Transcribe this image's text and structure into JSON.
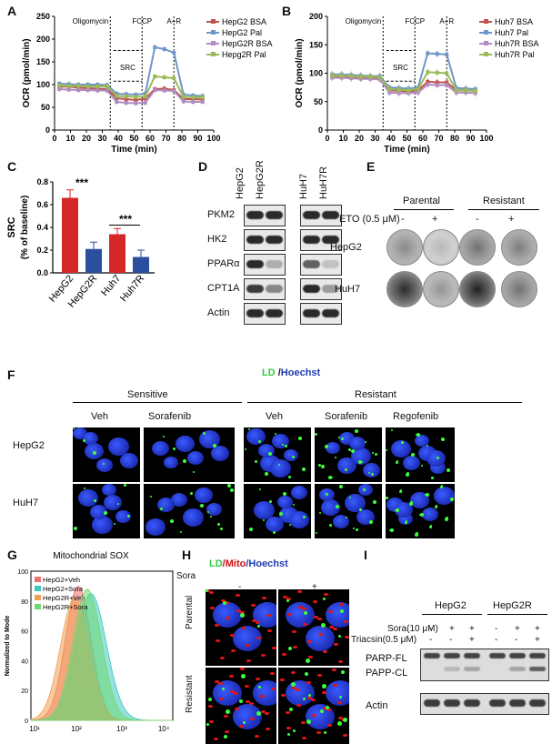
{
  "panels": {
    "A": "A",
    "B": "B",
    "C": "C",
    "D": "D",
    "E": "E",
    "F": "F",
    "G": "G",
    "H": "H",
    "I": "I"
  },
  "panelA": {
    "ylabel": "OCR (pmol/min)",
    "xlabel": "Time (min)",
    "markers": [
      "Oligomycin",
      "FCCP",
      "A+R"
    ],
    "src": "SRC",
    "legend": [
      {
        "name": "HepG2 BSA",
        "color": "#c0504d"
      },
      {
        "name": "HepG2 Pal",
        "color": "#6f96c8"
      },
      {
        "name": "HepG2R BSA",
        "color": "#b08cc0"
      },
      {
        "name": "Hepg2R Pal",
        "color": "#9bbb59"
      }
    ],
    "yticks": [
      "0",
      "50",
      "100",
      "150",
      "200",
      "250"
    ],
    "xticks": [
      "0",
      "10",
      "20",
      "30",
      "40",
      "50",
      "60",
      "70",
      "80",
      "90",
      "100"
    ]
  },
  "panelB": {
    "ylabel": "OCR (pmol/min)",
    "xlabel": "Time (min)",
    "markers": [
      "Oligomycin",
      "FCCP",
      "A+R"
    ],
    "src": "SRC",
    "legend": [
      {
        "name": "Huh7 BSA",
        "color": "#c0504d"
      },
      {
        "name": "Huh7 Pal",
        "color": "#6f96c8"
      },
      {
        "name": "Huh7R BSA",
        "color": "#b08cc0"
      },
      {
        "name": "Huh7R Pal",
        "color": "#9bbb59"
      }
    ],
    "yticks": [
      "0",
      "50",
      "100",
      "150",
      "200"
    ],
    "xticks": [
      "0",
      "10",
      "20",
      "30",
      "40",
      "50",
      "60",
      "70",
      "80",
      "90",
      "100"
    ]
  },
  "chart_data": [
    {
      "type": "line",
      "panel": "A",
      "x": [
        3,
        9,
        15,
        21,
        27,
        33,
        39,
        45,
        51,
        57,
        63,
        69,
        75,
        81,
        87,
        93
      ],
      "series": [
        {
          "name": "HepG2 BSA",
          "values": [
            95,
            96,
            93,
            92,
            91,
            90,
            70,
            68,
            66,
            69,
            90,
            91,
            88,
            68,
            68,
            67
          ]
        },
        {
          "name": "HepG2 Pal",
          "values": [
            102,
            101,
            100,
            100,
            100,
            99,
            80,
            79,
            78,
            80,
            182,
            178,
            170,
            78,
            76,
            75
          ]
        },
        {
          "name": "HepG2R BSA",
          "values": [
            90,
            89,
            88,
            88,
            87,
            87,
            62,
            60,
            59,
            60,
            88,
            87,
            86,
            63,
            62,
            62
          ]
        },
        {
          "name": "Hepg2R Pal",
          "values": [
            98,
            97,
            97,
            96,
            96,
            96,
            75,
            74,
            73,
            74,
            118,
            116,
            114,
            73,
            72,
            72
          ]
        }
      ],
      "ylim": [
        0,
        250
      ],
      "xlim": [
        0,
        100
      ]
    },
    {
      "type": "line",
      "panel": "B",
      "x": [
        3,
        9,
        15,
        21,
        27,
        33,
        39,
        45,
        51,
        57,
        63,
        69,
        75,
        81,
        87,
        93
      ],
      "series": [
        {
          "name": "Huh7 BSA",
          "values": [
            95,
            95,
            94,
            93,
            92,
            91,
            70,
            69,
            68,
            70,
            85,
            84,
            84,
            70,
            70,
            69
          ]
        },
        {
          "name": "Huh7 Pal",
          "values": [
            98,
            98,
            97,
            96,
            95,
            95,
            75,
            74,
            73,
            75,
            135,
            134,
            133,
            74,
            73,
            72
          ]
        },
        {
          "name": "Huh7R BSA",
          "values": [
            92,
            92,
            91,
            90,
            90,
            89,
            66,
            65,
            65,
            66,
            80,
            79,
            79,
            66,
            66,
            65
          ]
        },
        {
          "name": "Huh7R Pal",
          "values": [
            96,
            96,
            95,
            94,
            94,
            93,
            72,
            71,
            70,
            72,
            102,
            101,
            100,
            70,
            70,
            69
          ]
        }
      ],
      "ylim": [
        0,
        200
      ],
      "xlim": [
        0,
        100
      ]
    },
    {
      "type": "bar",
      "panel": "C",
      "categories": [
        "HepG2",
        "HepG2R",
        "Huh7",
        "Huh7R"
      ],
      "values": [
        0.66,
        0.21,
        0.34,
        0.14
      ],
      "errors": [
        0.07,
        0.06,
        0.05,
        0.06
      ],
      "colors": [
        "#d62728",
        "#2b4f9e",
        "#d62728",
        "#2b4f9e"
      ],
      "ylabel": "SRC\n(% of baseline)",
      "ylim": [
        0,
        0.8
      ],
      "yticks": [
        "0.0",
        "0.2",
        "0.4",
        "0.6",
        "0.8"
      ],
      "sig": [
        "***",
        "***"
      ]
    },
    {
      "type": "area",
      "panel": "G",
      "title": "Mitochondrial SOX",
      "ylabel": "Normalized to Mode",
      "series": [
        {
          "name": "HepG2+Veh",
          "color": "#f07070"
        },
        {
          "name": "HepG2+Sora",
          "color": "#40c8c0"
        },
        {
          "name": "HepG2R+Veh",
          "color": "#f0a050"
        },
        {
          "name": "HepG2R+Sora",
          "color": "#70d870"
        }
      ],
      "xticks": [
        "10¹",
        "10²",
        "10³",
        "10⁴"
      ],
      "yticks": [
        "0",
        "20",
        "40",
        "60",
        "80",
        "100"
      ]
    }
  ],
  "panelD": {
    "cols1": [
      "HepG2",
      "HepG2R"
    ],
    "cols2": [
      "HuH7",
      "HuH7R"
    ],
    "rows": [
      "PKM2",
      "HK2",
      "PPARα",
      "CPT1A",
      "Actin"
    ]
  },
  "panelE": {
    "groups": [
      "Parental",
      "Resistant"
    ],
    "treatment": "ETO (0.5 μM)",
    "signs": [
      "-",
      "+",
      "-",
      "+"
    ],
    "rows": [
      "HepG2",
      "HuH7"
    ]
  },
  "panelF": {
    "title_ld": "LD",
    "title_sep": " /",
    "title_h": "Hoechst",
    "group1": "Sensitive",
    "group2": "Resistant",
    "cols": [
      "Veh",
      "Sorafenib",
      "Veh",
      "Sorafenib",
      "Regofenib"
    ],
    "rows": [
      "HepG2",
      "HuH7"
    ]
  },
  "panelH": {
    "t_ld": "LD",
    "t_mito": "/Mito",
    "t_h": "/Hoechst",
    "sora": "Sora",
    "minus": "-",
    "plus": "+",
    "rows": [
      "Parental",
      "Resistant"
    ]
  },
  "panelI": {
    "groups": [
      "HepG2",
      "HepG2R"
    ],
    "sora": "Sora(10 μM)",
    "triacsin": "Triacsin(0.5 μM)",
    "sora_signs": [
      "-",
      "+",
      "+",
      "-",
      "+",
      "+"
    ],
    "tri_signs": [
      "-",
      "-",
      "+",
      "-",
      "-",
      "+"
    ],
    "rows": [
      "PARP-FL",
      "PAPP-CL",
      "Actin"
    ]
  }
}
